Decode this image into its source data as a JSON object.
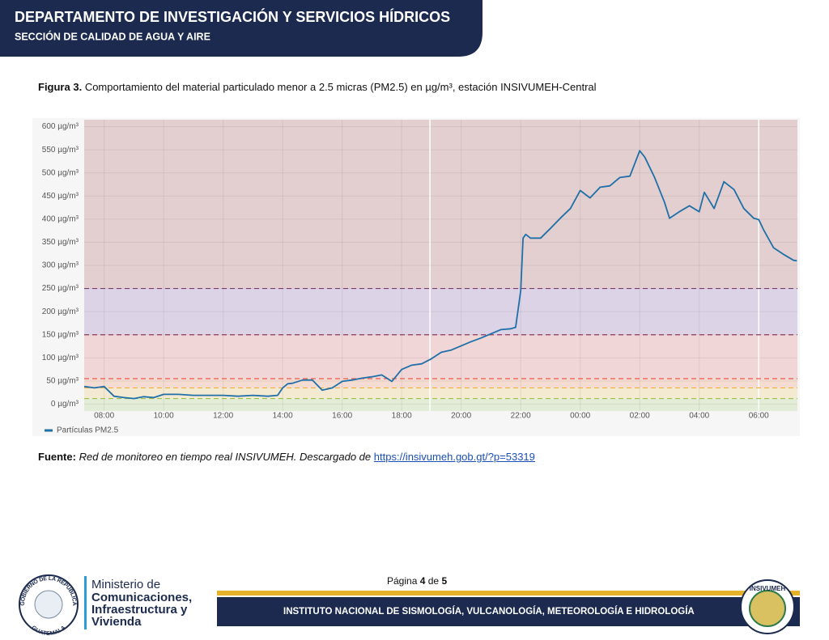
{
  "header": {
    "title": "DEPARTAMENTO DE INVESTIGACIÓN Y SERVICIOS HÍDRICOS",
    "subtitle": "SECCIÓN DE CALIDAD DE AGUA Y AIRE"
  },
  "figure": {
    "label": "Figura 3.",
    "caption": "Comportamiento del material particulado menor a 2.5 micras (PM2.5) en µg/m³, estación INSIVUMEH-Central"
  },
  "chart_data": {
    "type": "line",
    "x": [
      7.33,
      7.67,
      8,
      8.33,
      8.67,
      9,
      9.33,
      9.67,
      10,
      10.5,
      11,
      11.5,
      12,
      12.5,
      13,
      13.5,
      13.83,
      14,
      14.17,
      14.33,
      14.67,
      15,
      15.33,
      15.67,
      16,
      16.33,
      16.67,
      17,
      17.33,
      17.67,
      18,
      18.33,
      18.67,
      19,
      19.33,
      19.67,
      20,
      20.33,
      20.67,
      21,
      21.33,
      21.67,
      21.83,
      22,
      22.08,
      22.17,
      22.33,
      22.67,
      23,
      23.33,
      23.67,
      24,
      24.33,
      24.67,
      25,
      25.33,
      25.67,
      26,
      26.17,
      26.5,
      26.83,
      27,
      27.33,
      27.67,
      28,
      28.17,
      28.5,
      28.83,
      29.17,
      29.5,
      29.83,
      30,
      30.17,
      30.5,
      30.83,
      31.17,
      31.28
    ],
    "series": [
      {
        "name": "Partículas PM2.5",
        "color": "#1f6fa8",
        "values": [
          38,
          35,
          38,
          17,
          14,
          12,
          16,
          14,
          21,
          21,
          19,
          19,
          19,
          17,
          19,
          17,
          19,
          35,
          44,
          45,
          52,
          52,
          30,
          35,
          49,
          52,
          56,
          59,
          63,
          49,
          75,
          84,
          87,
          98,
          112,
          117,
          126,
          135,
          143,
          152,
          161,
          163,
          166,
          245,
          359,
          367,
          359,
          359,
          380,
          402,
          423,
          462,
          446,
          469,
          472,
          490,
          493,
          548,
          534,
          490,
          437,
          402,
          416,
          429,
          416,
          458,
          423,
          481,
          464,
          423,
          402,
          399,
          376,
          338,
          324,
          311,
          310
        ]
      }
    ],
    "xlim": [
      7.33,
      31.3
    ],
    "xticks": [
      {
        "value": 8,
        "label": "08:00"
      },
      {
        "value": 10,
        "label": "10:00"
      },
      {
        "value": 12,
        "label": "12:00"
      },
      {
        "value": 14,
        "label": "14:00"
      },
      {
        "value": 16,
        "label": "16:00"
      },
      {
        "value": 18,
        "label": "18:00"
      },
      {
        "value": 20,
        "label": "20:00"
      },
      {
        "value": 22,
        "label": "22:00"
      },
      {
        "value": 24,
        "label": "00:00"
      },
      {
        "value": 26,
        "label": "02:00"
      },
      {
        "value": 28,
        "label": "04:00"
      },
      {
        "value": 30,
        "label": "06:00"
      }
    ],
    "ylim": [
      -15,
      615
    ],
    "yticks": [
      {
        "value": 0,
        "label": "0 µg/m³"
      },
      {
        "value": 50,
        "label": "50 µg/m³"
      },
      {
        "value": 100,
        "label": "100 µg/m³"
      },
      {
        "value": 150,
        "label": "150 µg/m³"
      },
      {
        "value": 200,
        "label": "200 µg/m³"
      },
      {
        "value": 250,
        "label": "250 µg/m³"
      },
      {
        "value": 300,
        "label": "300 µg/m³"
      },
      {
        "value": 350,
        "label": "350 µg/m³"
      },
      {
        "value": 400,
        "label": "400 µg/m³"
      },
      {
        "value": 450,
        "label": "450 µg/m³"
      },
      {
        "value": 500,
        "label": "500 µg/m³"
      },
      {
        "value": 550,
        "label": "550 µg/m³"
      },
      {
        "value": 600,
        "label": "600 µg/m³"
      }
    ],
    "grid": true,
    "thresholds": [
      {
        "value": 12,
        "color": "#9cc04a",
        "fill": "#e2ecd6"
      },
      {
        "value": 35,
        "color": "#f0b040",
        "fill": "#f4ead2"
      },
      {
        "value": 55,
        "color": "#e85a4a",
        "fill": "#f5dcd2"
      },
      {
        "value": 150,
        "color": "#8e3b5c",
        "fill": "#f1d6d8"
      },
      {
        "value": 250,
        "color": "#7a3c70",
        "fill": "#ddd3e6"
      }
    ],
    "top_fill": "#e3cfcf",
    "vertical_lines": [
      18.95,
      30
    ],
    "legend": "bottom-left"
  },
  "source": {
    "label": "Fuente:",
    "text": "Red de monitoreo en tiempo real INSIVUMEH. Descargado de",
    "link": "https://insivumeh.gob.gt/?p=53319"
  },
  "page": {
    "word": "Página",
    "current": "4",
    "of": "de",
    "total": "5"
  },
  "footer": {
    "seal_top": "GOBIERNO DE LA REPÚBLICA",
    "seal_bottom": "GUATEMALA",
    "ministry": [
      "Ministerio de",
      "Comunicaciones,",
      "Infraestructura y",
      "Vivienda"
    ],
    "institute": "INSTITUTO NACIONAL DE SISMOLOGÍA, VULCANOLOGÍA, METEOROLOGÍA E HIDROLOGÍA",
    "logo": "INSIVUMEH"
  }
}
